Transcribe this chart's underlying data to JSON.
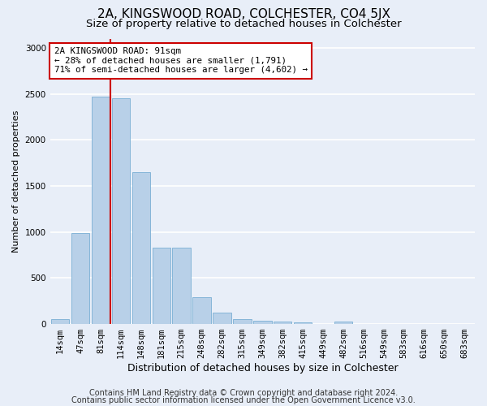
{
  "title": "2A, KINGSWOOD ROAD, COLCHESTER, CO4 5JX",
  "subtitle": "Size of property relative to detached houses in Colchester",
  "xlabel": "Distribution of detached houses by size in Colchester",
  "ylabel": "Number of detached properties",
  "categories": [
    "14sqm",
    "47sqm",
    "81sqm",
    "114sqm",
    "148sqm",
    "181sqm",
    "215sqm",
    "248sqm",
    "282sqm",
    "315sqm",
    "349sqm",
    "382sqm",
    "415sqm",
    "449sqm",
    "482sqm",
    "516sqm",
    "549sqm",
    "583sqm",
    "616sqm",
    "650sqm",
    "683sqm"
  ],
  "values": [
    50,
    990,
    2470,
    2450,
    1650,
    830,
    830,
    290,
    120,
    55,
    40,
    30,
    20,
    0,
    30,
    0,
    0,
    0,
    0,
    0,
    0
  ],
  "bar_color": "#b8d0e8",
  "bar_edge_color": "#7aafd4",
  "vline_x_index": 2,
  "vline_color": "#cc0000",
  "ylim": [
    0,
    3100
  ],
  "yticks": [
    0,
    500,
    1000,
    1500,
    2000,
    2500,
    3000
  ],
  "annotation_text": "2A KINGSWOOD ROAD: 91sqm\n← 28% of detached houses are smaller (1,791)\n71% of semi-detached houses are larger (4,602) →",
  "annotation_box_color": "#ffffff",
  "annotation_box_edge": "#cc0000",
  "footer1": "Contains HM Land Registry data © Crown copyright and database right 2024.",
  "footer2": "Contains public sector information licensed under the Open Government Licence v3.0.",
  "background_color": "#e8eef8",
  "grid_color": "#ffffff",
  "title_fontsize": 11,
  "subtitle_fontsize": 9.5,
  "ylabel_fontsize": 8,
  "xlabel_fontsize": 9,
  "tick_fontsize": 7.5,
  "annotation_fontsize": 7.8,
  "footer_fontsize": 7
}
